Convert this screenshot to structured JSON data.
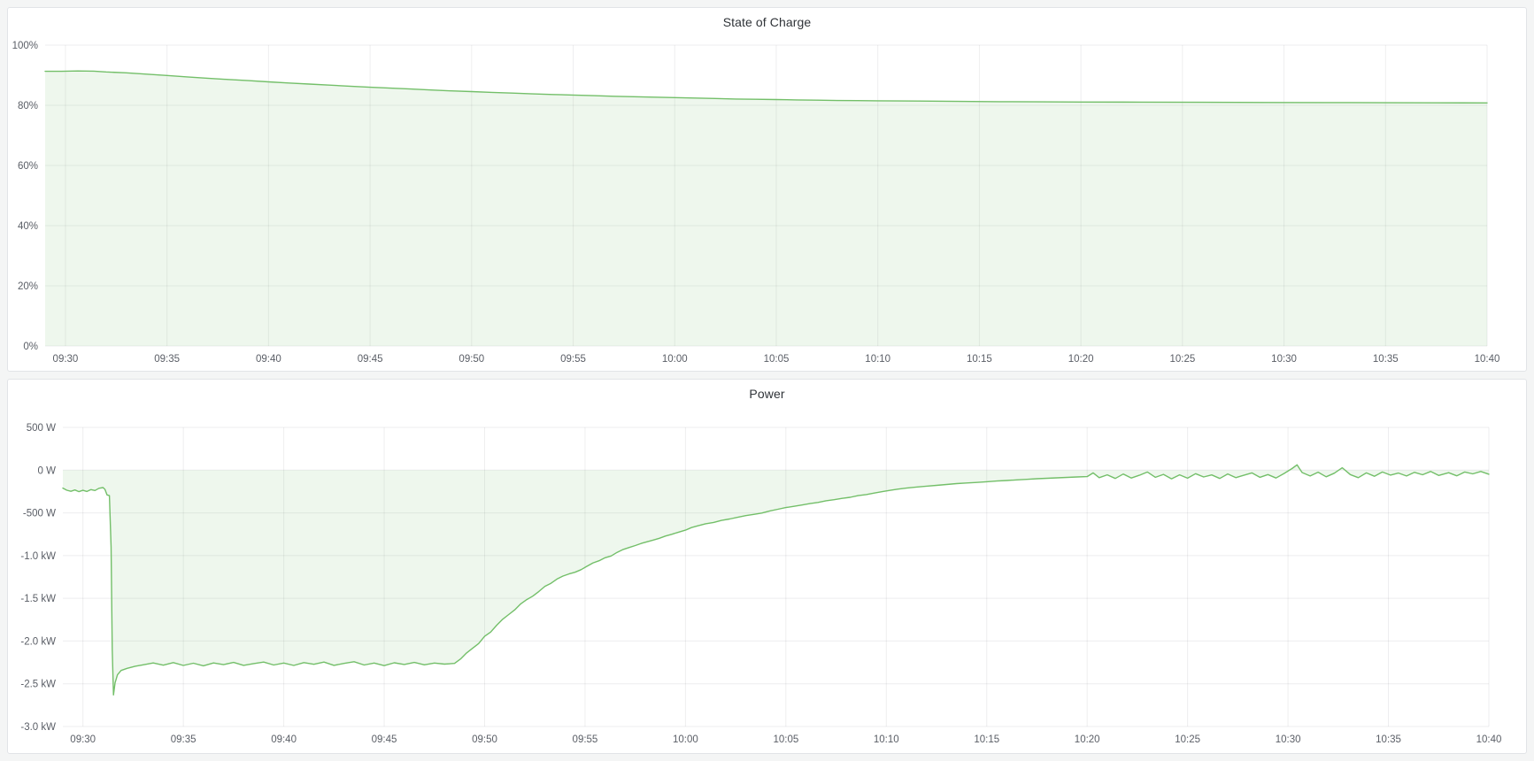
{
  "page": {
    "background": "#F4F5F5",
    "panel_background": "#FFFFFF"
  },
  "colors": {
    "series_green": "#73BF69",
    "series_fill": "rgba(115,191,105,0.12)",
    "grid": "rgba(36,41,46,0.08)",
    "axis_text": "#5A5E66",
    "title_text": "#2F3338"
  },
  "chart_data": [
    {
      "type": "area",
      "title": "State of Charge",
      "legend": "none",
      "grid": true,
      "x_start_time": "09:29",
      "x_end_time": "10:40",
      "x_range_minutes": [
        0,
        71
      ],
      "x_tick_minutes": [
        1,
        6,
        11,
        16,
        21,
        26,
        31,
        36,
        41,
        46,
        51,
        56,
        61,
        66,
        71
      ],
      "x_tick_labels": [
        "09:30",
        "09:35",
        "09:40",
        "09:45",
        "09:50",
        "09:55",
        "10:00",
        "10:05",
        "10:10",
        "10:15",
        "10:20",
        "10:25",
        "10:30",
        "10:35",
        "10:40"
      ],
      "ylim": [
        0,
        100
      ],
      "y_tick_values": [
        0,
        20,
        40,
        60,
        80,
        100
      ],
      "y_tick_labels": [
        "0%",
        "20%",
        "40%",
        "60%",
        "80%",
        "100%"
      ],
      "series": [
        {
          "name": "State of Charge",
          "unit": "%",
          "color": "#73BF69",
          "fill_to_zero": true,
          "points": [
            [
              0,
              91.3
            ],
            [
              0.8,
              91.3
            ],
            [
              1.6,
              91.4
            ],
            [
              2.4,
              91.35
            ],
            [
              3,
              91.1
            ],
            [
              4,
              90.8
            ],
            [
              5,
              90.35
            ],
            [
              6,
              89.9
            ],
            [
              7,
              89.45
            ],
            [
              8,
              89.0
            ],
            [
              9,
              88.6
            ],
            [
              10,
              88.2
            ],
            [
              11,
              87.8
            ],
            [
              12,
              87.4
            ],
            [
              13,
              87.05
            ],
            [
              14,
              86.7
            ],
            [
              15,
              86.35
            ],
            [
              16,
              86.0
            ],
            [
              17,
              85.7
            ],
            [
              18,
              85.4
            ],
            [
              19,
              85.1
            ],
            [
              20,
              84.8
            ],
            [
              21,
              84.55
            ],
            [
              22,
              84.3
            ],
            [
              23,
              84.05
            ],
            [
              24,
              83.8
            ],
            [
              25,
              83.6
            ],
            [
              26,
              83.4
            ],
            [
              27,
              83.2
            ],
            [
              28,
              83.0
            ],
            [
              29,
              82.85
            ],
            [
              30,
              82.7
            ],
            [
              31,
              82.55
            ],
            [
              32,
              82.4
            ],
            [
              33,
              82.25
            ],
            [
              34,
              82.1
            ],
            [
              35,
              82.0
            ],
            [
              36,
              81.9
            ],
            [
              37,
              81.8
            ],
            [
              38,
              81.7
            ],
            [
              39,
              81.6
            ],
            [
              40,
              81.55
            ],
            [
              41,
              81.5
            ],
            [
              43,
              81.4
            ],
            [
              45,
              81.3
            ],
            [
              47,
              81.22
            ],
            [
              49,
              81.16
            ],
            [
              51,
              81.1
            ],
            [
              54,
              81.05
            ],
            [
              57,
              81.0
            ],
            [
              60,
              80.95
            ],
            [
              63,
              80.9
            ],
            [
              66,
              80.85
            ],
            [
              68.5,
              80.82
            ],
            [
              71,
              80.8
            ]
          ]
        }
      ]
    },
    {
      "type": "area",
      "title": "Power",
      "legend": "none",
      "grid": true,
      "x_start_time": "09:29",
      "x_end_time": "10:40",
      "x_range_minutes": [
        0,
        71
      ],
      "x_tick_minutes": [
        1,
        6,
        11,
        16,
        21,
        26,
        31,
        36,
        41,
        46,
        51,
        56,
        61,
        66,
        71
      ],
      "x_tick_labels": [
        "09:30",
        "09:35",
        "09:40",
        "09:45",
        "09:50",
        "09:55",
        "10:00",
        "10:05",
        "10:10",
        "10:15",
        "10:20",
        "10:25",
        "10:30",
        "10:35",
        "10:40"
      ],
      "ylim": [
        -3000,
        500
      ],
      "y_tick_values": [
        500,
        0,
        -500,
        -1000,
        -1500,
        -2000,
        -2500,
        -3000
      ],
      "y_tick_labels": [
        "500 W",
        "0 W",
        "-500 W",
        "-1.0 kW",
        "-1.5 kW",
        "-2.0 kW",
        "-2.5 kW",
        "-3.0 kW"
      ],
      "series": [
        {
          "name": "Power",
          "unit": "W",
          "color": "#73BF69",
          "fill_to_zero": true,
          "points": [
            [
              0,
              -210
            ],
            [
              0.2,
              -235
            ],
            [
              0.4,
              -248
            ],
            [
              0.6,
              -232
            ],
            [
              0.8,
              -252
            ],
            [
              1,
              -236
            ],
            [
              1.2,
              -250
            ],
            [
              1.4,
              -228
            ],
            [
              1.6,
              -238
            ],
            [
              1.8,
              -212
            ],
            [
              2,
              -204
            ],
            [
              2.1,
              -226
            ],
            [
              2.2,
              -290
            ],
            [
              2.32,
              -298
            ],
            [
              2.4,
              -900
            ],
            [
              2.46,
              -2100
            ],
            [
              2.52,
              -2630
            ],
            [
              2.6,
              -2490
            ],
            [
              2.72,
              -2395
            ],
            [
              2.9,
              -2345
            ],
            [
              3.2,
              -2320
            ],
            [
              3.6,
              -2295
            ],
            [
              4,
              -2278
            ],
            [
              4.5,
              -2256
            ],
            [
              5,
              -2282
            ],
            [
              5.5,
              -2252
            ],
            [
              6,
              -2286
            ],
            [
              6.5,
              -2260
            ],
            [
              7,
              -2290
            ],
            [
              7.5,
              -2256
            ],
            [
              8,
              -2276
            ],
            [
              8.5,
              -2250
            ],
            [
              9,
              -2284
            ],
            [
              9.5,
              -2264
            ],
            [
              10,
              -2246
            ],
            [
              10.5,
              -2280
            ],
            [
              11,
              -2258
            ],
            [
              11.5,
              -2286
            ],
            [
              12,
              -2252
            ],
            [
              12.5,
              -2272
            ],
            [
              13,
              -2246
            ],
            [
              13.5,
              -2284
            ],
            [
              14,
              -2262
            ],
            [
              14.5,
              -2242
            ],
            [
              15,
              -2280
            ],
            [
              15.5,
              -2258
            ],
            [
              16,
              -2288
            ],
            [
              16.5,
              -2254
            ],
            [
              17,
              -2274
            ],
            [
              17.5,
              -2250
            ],
            [
              18,
              -2278
            ],
            [
              18.5,
              -2258
            ],
            [
              19,
              -2270
            ],
            [
              19.5,
              -2262
            ],
            [
              19.8,
              -2210
            ],
            [
              20.1,
              -2140
            ],
            [
              20.4,
              -2085
            ],
            [
              20.7,
              -2030
            ],
            [
              21,
              -1945
            ],
            [
              21.3,
              -1895
            ],
            [
              21.6,
              -1815
            ],
            [
              21.9,
              -1745
            ],
            [
              22.2,
              -1690
            ],
            [
              22.5,
              -1635
            ],
            [
              22.8,
              -1565
            ],
            [
              23.1,
              -1515
            ],
            [
              23.4,
              -1475
            ],
            [
              23.7,
              -1420
            ],
            [
              24,
              -1360
            ],
            [
              24.3,
              -1325
            ],
            [
              24.6,
              -1275
            ],
            [
              24.9,
              -1240
            ],
            [
              25.2,
              -1215
            ],
            [
              25.5,
              -1195
            ],
            [
              25.8,
              -1165
            ],
            [
              26.1,
              -1125
            ],
            [
              26.4,
              -1085
            ],
            [
              26.7,
              -1060
            ],
            [
              27,
              -1025
            ],
            [
              27.3,
              -1005
            ],
            [
              27.6,
              -962
            ],
            [
              27.9,
              -928
            ],
            [
              28.2,
              -905
            ],
            [
              28.5,
              -882
            ],
            [
              28.8,
              -858
            ],
            [
              29.1,
              -838
            ],
            [
              29.4,
              -818
            ],
            [
              29.7,
              -798
            ],
            [
              30,
              -772
            ],
            [
              30.3,
              -752
            ],
            [
              30.6,
              -730
            ],
            [
              31,
              -702
            ],
            [
              31.3,
              -672
            ],
            [
              31.6,
              -652
            ],
            [
              32,
              -628
            ],
            [
              32.4,
              -612
            ],
            [
              32.8,
              -588
            ],
            [
              33.2,
              -572
            ],
            [
              33.6,
              -552
            ],
            [
              34,
              -532
            ],
            [
              34.4,
              -518
            ],
            [
              34.8,
              -502
            ],
            [
              35.2,
              -478
            ],
            [
              35.6,
              -458
            ],
            [
              36,
              -438
            ],
            [
              36.4,
              -424
            ],
            [
              36.8,
              -408
            ],
            [
              37.2,
              -392
            ],
            [
              37.6,
              -378
            ],
            [
              38,
              -358
            ],
            [
              38.4,
              -346
            ],
            [
              38.8,
              -330
            ],
            [
              39.2,
              -318
            ],
            [
              39.6,
              -298
            ],
            [
              40,
              -286
            ],
            [
              40.4,
              -268
            ],
            [
              40.8,
              -252
            ],
            [
              41.2,
              -236
            ],
            [
              41.6,
              -222
            ],
            [
              42,
              -210
            ],
            [
              42.5,
              -198
            ],
            [
              43,
              -188
            ],
            [
              43.5,
              -178
            ],
            [
              44,
              -168
            ],
            [
              44.5,
              -158
            ],
            [
              45,
              -150
            ],
            [
              45.5,
              -144
            ],
            [
              46,
              -136
            ],
            [
              46.5,
              -128
            ],
            [
              47,
              -121
            ],
            [
              47.5,
              -114
            ],
            [
              48,
              -108
            ],
            [
              48.5,
              -101
            ],
            [
              49,
              -95
            ],
            [
              49.5,
              -90
            ],
            [
              50,
              -85
            ],
            [
              50.5,
              -80
            ],
            [
              51,
              -76
            ],
            [
              51.3,
              -32
            ],
            [
              51.6,
              -88
            ],
            [
              52,
              -55
            ],
            [
              52.4,
              -98
            ],
            [
              52.8,
              -46
            ],
            [
              53.2,
              -92
            ],
            [
              53.6,
              -60
            ],
            [
              54,
              -22
            ],
            [
              54.4,
              -84
            ],
            [
              54.8,
              -50
            ],
            [
              55.2,
              -102
            ],
            [
              55.6,
              -55
            ],
            [
              56,
              -94
            ],
            [
              56.4,
              -42
            ],
            [
              56.8,
              -80
            ],
            [
              57.2,
              -56
            ],
            [
              57.6,
              -98
            ],
            [
              58,
              -45
            ],
            [
              58.4,
              -88
            ],
            [
              58.8,
              -60
            ],
            [
              59.2,
              -32
            ],
            [
              59.6,
              -84
            ],
            [
              60,
              -52
            ],
            [
              60.4,
              -92
            ],
            [
              60.8,
              -40
            ],
            [
              61.2,
              18
            ],
            [
              61.45,
              62
            ],
            [
              61.7,
              -28
            ],
            [
              62.1,
              -68
            ],
            [
              62.5,
              -24
            ],
            [
              62.9,
              -78
            ],
            [
              63.3,
              -36
            ],
            [
              63.7,
              28
            ],
            [
              64.1,
              -52
            ],
            [
              64.5,
              -88
            ],
            [
              64.9,
              -32
            ],
            [
              65.3,
              -72
            ],
            [
              65.7,
              -22
            ],
            [
              66.1,
              -58
            ],
            [
              66.5,
              -34
            ],
            [
              66.9,
              -68
            ],
            [
              67.3,
              -26
            ],
            [
              67.7,
              -54
            ],
            [
              68.1,
              -16
            ],
            [
              68.5,
              -62
            ],
            [
              69,
              -30
            ],
            [
              69.4,
              -66
            ],
            [
              69.8,
              -22
            ],
            [
              70.2,
              -44
            ],
            [
              70.6,
              -16
            ],
            [
              71,
              -48
            ]
          ]
        }
      ]
    }
  ]
}
